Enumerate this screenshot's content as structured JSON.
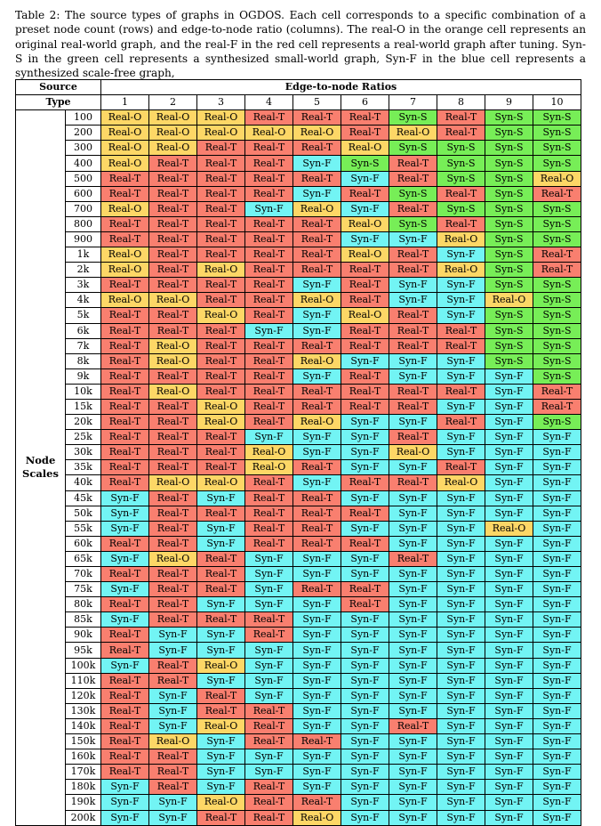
{
  "caption": "Table 2: The source types of graphs in OGDOS. Each cell corresponds to a specific combination of a preset node count (rows) and edge-to-node ratio (columns). The real-O in the orange cell represents an original real-world graph, and the real-F in the red cell represents a real-world graph after tuning. Syn-S in the green cell represents a synthesized small-world graph, Syn-F in the blue cell represents a synthesized scale-free graph,",
  "header": {
    "corner_line1": "Source",
    "corner_line2": "Type",
    "group": "Edge-to-node Ratios",
    "row_group_line1": "Node",
    "row_group_line2": "Scales"
  },
  "colors": {
    "Real-O": "#fdd766",
    "Real-T": "#f97f6f",
    "Syn-S": "#77ee57",
    "Syn-F": "#72f4f4"
  },
  "columns": [
    "1",
    "2",
    "3",
    "4",
    "5",
    "6",
    "7",
    "8",
    "9",
    "10"
  ],
  "rows": [
    {
      "label": "100",
      "cells": [
        "Real-O",
        "Real-O",
        "Real-O",
        "Real-T",
        "Real-T",
        "Real-T",
        "Syn-S",
        "Real-T",
        "Syn-S",
        "Syn-S"
      ]
    },
    {
      "label": "200",
      "cells": [
        "Real-O",
        "Real-O",
        "Real-O",
        "Real-O",
        "Real-O",
        "Real-T",
        "Real-O",
        "Real-T",
        "Syn-S",
        "Syn-S"
      ]
    },
    {
      "label": "300",
      "cells": [
        "Real-O",
        "Real-O",
        "Real-T",
        "Real-T",
        "Real-T",
        "Real-O",
        "Syn-S",
        "Syn-S",
        "Syn-S",
        "Syn-S"
      ]
    },
    {
      "label": "400",
      "cells": [
        "Real-O",
        "Real-T",
        "Real-T",
        "Real-T",
        "Syn-F",
        "Syn-S",
        "Real-T",
        "Syn-S",
        "Syn-S",
        "Syn-S"
      ]
    },
    {
      "label": "500",
      "cells": [
        "Real-T",
        "Real-T",
        "Real-T",
        "Real-T",
        "Real-T",
        "Syn-F",
        "Real-T",
        "Syn-S",
        "Syn-S",
        "Real-O"
      ]
    },
    {
      "label": "600",
      "cells": [
        "Real-T",
        "Real-T",
        "Real-T",
        "Real-T",
        "Syn-F",
        "Real-T",
        "Syn-S",
        "Real-T",
        "Syn-S",
        "Real-T"
      ]
    },
    {
      "label": "700",
      "cells": [
        "Real-O",
        "Real-T",
        "Real-T",
        "Syn-F",
        "Real-O",
        "Syn-F",
        "Real-T",
        "Syn-S",
        "Syn-S",
        "Syn-S"
      ]
    },
    {
      "label": "800",
      "cells": [
        "Real-T",
        "Real-T",
        "Real-T",
        "Real-T",
        "Real-T",
        "Real-O",
        "Syn-S",
        "Real-T",
        "Syn-S",
        "Syn-S"
      ]
    },
    {
      "label": "900",
      "cells": [
        "Real-T",
        "Real-T",
        "Real-T",
        "Real-T",
        "Real-T",
        "Syn-F",
        "Syn-F",
        "Real-O",
        "Syn-S",
        "Syn-S"
      ]
    },
    {
      "label": "1k",
      "cells": [
        "Real-O",
        "Real-T",
        "Real-T",
        "Real-T",
        "Real-T",
        "Real-O",
        "Real-T",
        "Syn-F",
        "Syn-S",
        "Real-T"
      ]
    },
    {
      "label": "2k",
      "cells": [
        "Real-O",
        "Real-T",
        "Real-O",
        "Real-T",
        "Real-T",
        "Real-T",
        "Real-T",
        "Real-O",
        "Syn-S",
        "Real-T"
      ]
    },
    {
      "label": "3k",
      "cells": [
        "Real-T",
        "Real-T",
        "Real-T",
        "Real-T",
        "Syn-F",
        "Real-T",
        "Syn-F",
        "Syn-F",
        "Syn-S",
        "Syn-S"
      ]
    },
    {
      "label": "4k",
      "cells": [
        "Real-O",
        "Real-O",
        "Real-T",
        "Real-T",
        "Real-O",
        "Real-T",
        "Syn-F",
        "Syn-F",
        "Real-O",
        "Syn-S"
      ]
    },
    {
      "label": "5k",
      "cells": [
        "Real-T",
        "Real-T",
        "Real-O",
        "Real-T",
        "Syn-F",
        "Real-O",
        "Real-T",
        "Syn-F",
        "Syn-S",
        "Syn-S"
      ]
    },
    {
      "label": "6k",
      "cells": [
        "Real-T",
        "Real-T",
        "Real-T",
        "Syn-F",
        "Syn-F",
        "Real-T",
        "Real-T",
        "Real-T",
        "Syn-S",
        "Syn-S"
      ]
    },
    {
      "label": "7k",
      "cells": [
        "Real-T",
        "Real-O",
        "Real-T",
        "Real-T",
        "Real-T",
        "Real-T",
        "Real-T",
        "Real-T",
        "Syn-S",
        "Syn-S"
      ]
    },
    {
      "label": "8k",
      "cells": [
        "Real-T",
        "Real-O",
        "Real-T",
        "Real-T",
        "Real-O",
        "Syn-F",
        "Syn-F",
        "Syn-F",
        "Syn-S",
        "Syn-S"
      ]
    },
    {
      "label": "9k",
      "cells": [
        "Real-T",
        "Real-T",
        "Real-T",
        "Real-T",
        "Syn-F",
        "Real-T",
        "Syn-F",
        "Syn-F",
        "Syn-F",
        "Syn-S"
      ]
    },
    {
      "label": "10k",
      "cells": [
        "Real-T",
        "Real-O",
        "Real-T",
        "Real-T",
        "Real-T",
        "Real-T",
        "Real-T",
        "Real-T",
        "Syn-F",
        "Real-T"
      ]
    },
    {
      "label": "15k",
      "cells": [
        "Real-T",
        "Real-T",
        "Real-O",
        "Real-T",
        "Real-T",
        "Real-T",
        "Real-T",
        "Syn-F",
        "Syn-F",
        "Real-T"
      ]
    },
    {
      "label": "20k",
      "cells": [
        "Real-T",
        "Real-T",
        "Real-O",
        "Real-T",
        "Real-O",
        "Syn-F",
        "Syn-F",
        "Real-T",
        "Syn-F",
        "Syn-S"
      ]
    },
    {
      "label": "25k",
      "cells": [
        "Real-T",
        "Real-T",
        "Real-T",
        "Syn-F",
        "Syn-F",
        "Syn-F",
        "Real-T",
        "Syn-F",
        "Syn-F",
        "Syn-F"
      ]
    },
    {
      "label": "30k",
      "cells": [
        "Real-T",
        "Real-T",
        "Real-T",
        "Real-O",
        "Syn-F",
        "Syn-F",
        "Real-O",
        "Syn-F",
        "Syn-F",
        "Syn-F"
      ]
    },
    {
      "label": "35k",
      "cells": [
        "Real-T",
        "Real-T",
        "Real-T",
        "Real-O",
        "Real-T",
        "Syn-F",
        "Syn-F",
        "Real-T",
        "Syn-F",
        "Syn-F"
      ]
    },
    {
      "label": "40k",
      "cells": [
        "Real-T",
        "Real-O",
        "Real-O",
        "Real-T",
        "Syn-F",
        "Real-T",
        "Real-T",
        "Real-O",
        "Syn-F",
        "Syn-F"
      ]
    },
    {
      "label": "45k",
      "cells": [
        "Syn-F",
        "Real-T",
        "Syn-F",
        "Real-T",
        "Real-T",
        "Syn-F",
        "Syn-F",
        "Syn-F",
        "Syn-F",
        "Syn-F"
      ]
    },
    {
      "label": "50k",
      "cells": [
        "Syn-F",
        "Real-T",
        "Real-T",
        "Real-T",
        "Real-T",
        "Real-T",
        "Syn-F",
        "Syn-F",
        "Syn-F",
        "Syn-F"
      ]
    },
    {
      "label": "55k",
      "cells": [
        "Syn-F",
        "Real-T",
        "Syn-F",
        "Real-T",
        "Real-T",
        "Syn-F",
        "Syn-F",
        "Syn-F",
        "Real-O",
        "Syn-F"
      ]
    },
    {
      "label": "60k",
      "cells": [
        "Real-T",
        "Real-T",
        "Syn-F",
        "Real-T",
        "Real-T",
        "Real-T",
        "Syn-F",
        "Syn-F",
        "Syn-F",
        "Syn-F"
      ]
    },
    {
      "label": "65k",
      "cells": [
        "Syn-F",
        "Real-O",
        "Real-T",
        "Syn-F",
        "Syn-F",
        "Syn-F",
        "Real-T",
        "Syn-F",
        "Syn-F",
        "Syn-F"
      ]
    },
    {
      "label": "70k",
      "cells": [
        "Real-T",
        "Real-T",
        "Real-T",
        "Syn-F",
        "Syn-F",
        "Syn-F",
        "Syn-F",
        "Syn-F",
        "Syn-F",
        "Syn-F"
      ]
    },
    {
      "label": "75k",
      "cells": [
        "Syn-F",
        "Real-T",
        "Real-T",
        "Syn-F",
        "Real-T",
        "Real-T",
        "Syn-F",
        "Syn-F",
        "Syn-F",
        "Syn-F"
      ]
    },
    {
      "label": "80k",
      "cells": [
        "Real-T",
        "Real-T",
        "Syn-F",
        "Syn-F",
        "Syn-F",
        "Real-T",
        "Syn-F",
        "Syn-F",
        "Syn-F",
        "Syn-F"
      ]
    },
    {
      "label": "85k",
      "cells": [
        "Syn-F",
        "Real-T",
        "Real-T",
        "Real-T",
        "Syn-F",
        "Syn-F",
        "Syn-F",
        "Syn-F",
        "Syn-F",
        "Syn-F"
      ]
    },
    {
      "label": "90k",
      "cells": [
        "Real-T",
        "Syn-F",
        "Syn-F",
        "Real-T",
        "Syn-F",
        "Syn-F",
        "Syn-F",
        "Syn-F",
        "Syn-F",
        "Syn-F"
      ]
    },
    {
      "label": "95k",
      "cells": [
        "Real-T",
        "Syn-F",
        "Syn-F",
        "Syn-F",
        "Syn-F",
        "Syn-F",
        "Syn-F",
        "Syn-F",
        "Syn-F",
        "Syn-F"
      ]
    },
    {
      "label": "100k",
      "cells": [
        "Syn-F",
        "Real-T",
        "Real-O",
        "Syn-F",
        "Syn-F",
        "Syn-F",
        "Syn-F",
        "Syn-F",
        "Syn-F",
        "Syn-F"
      ]
    },
    {
      "label": "110k",
      "cells": [
        "Real-T",
        "Real-T",
        "Syn-F",
        "Syn-F",
        "Syn-F",
        "Syn-F",
        "Syn-F",
        "Syn-F",
        "Syn-F",
        "Syn-F"
      ]
    },
    {
      "label": "120k",
      "cells": [
        "Real-T",
        "Syn-F",
        "Real-T",
        "Syn-F",
        "Syn-F",
        "Syn-F",
        "Syn-F",
        "Syn-F",
        "Syn-F",
        "Syn-F"
      ]
    },
    {
      "label": "130k",
      "cells": [
        "Real-T",
        "Syn-F",
        "Real-T",
        "Real-T",
        "Syn-F",
        "Syn-F",
        "Syn-F",
        "Syn-F",
        "Syn-F",
        "Syn-F"
      ]
    },
    {
      "label": "140k",
      "cells": [
        "Real-T",
        "Syn-F",
        "Real-O",
        "Real-T",
        "Syn-F",
        "Syn-F",
        "Real-T",
        "Syn-F",
        "Syn-F",
        "Syn-F"
      ]
    },
    {
      "label": "150k",
      "cells": [
        "Real-T",
        "Real-O",
        "Syn-F",
        "Real-T",
        "Real-T",
        "Syn-F",
        "Syn-F",
        "Syn-F",
        "Syn-F",
        "Syn-F"
      ]
    },
    {
      "label": "160k",
      "cells": [
        "Real-T",
        "Real-T",
        "Syn-F",
        "Syn-F",
        "Syn-F",
        "Syn-F",
        "Syn-F",
        "Syn-F",
        "Syn-F",
        "Syn-F"
      ]
    },
    {
      "label": "170k",
      "cells": [
        "Real-T",
        "Real-T",
        "Syn-F",
        "Syn-F",
        "Syn-F",
        "Syn-F",
        "Syn-F",
        "Syn-F",
        "Syn-F",
        "Syn-F"
      ]
    },
    {
      "label": "180k",
      "cells": [
        "Syn-F",
        "Real-T",
        "Syn-F",
        "Real-T",
        "Syn-F",
        "Syn-F",
        "Syn-F",
        "Syn-F",
        "Syn-F",
        "Syn-F"
      ]
    },
    {
      "label": "190k",
      "cells": [
        "Syn-F",
        "Syn-F",
        "Real-O",
        "Real-T",
        "Real-T",
        "Syn-F",
        "Syn-F",
        "Syn-F",
        "Syn-F",
        "Syn-F"
      ]
    },
    {
      "label": "200k",
      "cells": [
        "Syn-F",
        "Syn-F",
        "Real-T",
        "Real-T",
        "Real-O",
        "Syn-F",
        "Syn-F",
        "Syn-F",
        "Syn-F",
        "Syn-F"
      ]
    }
  ]
}
